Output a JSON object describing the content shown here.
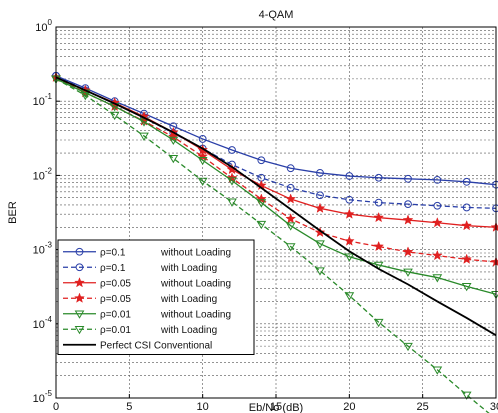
{
  "chart_data": {
    "type": "line",
    "title": "4-QAM",
    "xlabel": "Eb/No (dB)",
    "ylabel": "BER",
    "xlim": [
      0,
      30
    ],
    "ylim": [
      1e-05,
      1
    ],
    "yscale": "log",
    "grid": true,
    "legend_position": "bottom-left",
    "x_ticks": [
      0,
      5,
      10,
      15,
      20,
      25,
      30
    ],
    "x_tick_labels": [
      "0",
      "5",
      "10",
      "15",
      "20",
      "25",
      "30"
    ],
    "y_ticks": [
      1,
      0.1,
      0.01,
      0.001,
      0.0001,
      1e-05
    ],
    "y_tick_labels": [
      {
        "base": "10",
        "exp": "0"
      },
      {
        "base": "10",
        "exp": "-1"
      },
      {
        "base": "10",
        "exp": "-2"
      },
      {
        "base": "10",
        "exp": "-3"
      },
      {
        "base": "10",
        "exp": "-4"
      },
      {
        "base": "10",
        "exp": "-5"
      }
    ],
    "x": [
      0,
      2,
      4,
      6,
      8,
      10,
      12,
      14,
      16,
      18,
      20,
      22,
      24,
      26,
      28,
      30
    ],
    "series": [
      {
        "name_rho": "ρ=0.1",
        "name_desc": "without Loading",
        "color": "#2a3fa8",
        "dash": "solid",
        "marker": "circle",
        "values": [
          0.22,
          0.15,
          0.1,
          0.068,
          0.046,
          0.031,
          0.022,
          0.016,
          0.0125,
          0.0108,
          0.0098,
          0.0093,
          0.009,
          0.0087,
          0.0082,
          0.0075
        ]
      },
      {
        "name_rho": "ρ=0.1",
        "name_desc": "with Loading",
        "color": "#2a3fa8",
        "dash": "dashed",
        "marker": "circle",
        "values": [
          0.22,
          0.14,
          0.092,
          0.06,
          0.037,
          0.023,
          0.014,
          0.0093,
          0.0068,
          0.0054,
          0.0047,
          0.0043,
          0.0041,
          0.0039,
          0.0037,
          0.0036
        ]
      },
      {
        "name_rho": "ρ=0.05",
        "name_desc": "without Loading",
        "color": "#e02020",
        "dash": "solid",
        "marker": "star",
        "values": [
          0.21,
          0.14,
          0.095,
          0.062,
          0.038,
          0.022,
          0.012,
          0.0073,
          0.0048,
          0.0036,
          0.003,
          0.0027,
          0.0025,
          0.0023,
          0.0021,
          0.002
        ]
      },
      {
        "name_rho": "ρ=0.05",
        "name_desc": "with Loading",
        "color": "#e02020",
        "dash": "dashed",
        "marker": "star",
        "values": [
          0.21,
          0.13,
          0.085,
          0.054,
          0.033,
          0.018,
          0.0092,
          0.0048,
          0.0026,
          0.0017,
          0.0013,
          0.0011,
          0.00093,
          0.00083,
          0.00074,
          0.00068
        ]
      },
      {
        "name_rho": "ρ=0.01",
        "name_desc": "without Loading",
        "color": "#2a8a2a",
        "dash": "solid",
        "marker": "triangle-down",
        "values": [
          0.2,
          0.13,
          0.085,
          0.053,
          0.03,
          0.016,
          0.0085,
          0.0043,
          0.0021,
          0.0012,
          0.0008,
          0.00062,
          0.0005,
          0.00042,
          0.00032,
          0.00025
        ]
      },
      {
        "name_rho": "ρ=0.01",
        "name_desc": "with Loading",
        "color": "#2a8a2a",
        "dash": "dashed",
        "marker": "triangle-down",
        "values": [
          0.2,
          0.12,
          0.065,
          0.034,
          0.017,
          0.0084,
          0.0044,
          0.0022,
          0.0011,
          0.00052,
          0.00024,
          0.000105,
          5e-05,
          2.4e-05,
          1.1e-05,
          5.2e-06
        ]
      },
      {
        "name_rho": "",
        "name_desc": "Perfect CSI Conventional",
        "color": "#000000",
        "dash": "solid",
        "marker": "none",
        "values": [
          0.21,
          0.14,
          0.093,
          0.06,
          0.038,
          0.023,
          0.013,
          0.0068,
          0.0035,
          0.0018,
          0.00095,
          0.00055,
          0.00034,
          0.0002,
          0.00012,
          7e-05
        ]
      }
    ]
  }
}
